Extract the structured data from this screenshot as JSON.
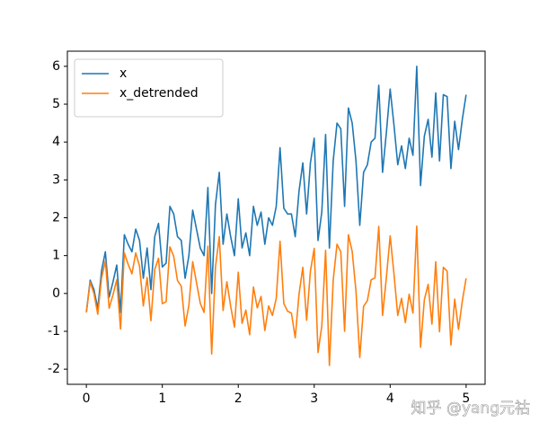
{
  "chart_data": {
    "type": "line",
    "x": [
      0,
      0.05,
      0.1,
      0.15,
      0.2,
      0.25,
      0.3,
      0.35,
      0.4,
      0.45,
      0.5,
      0.55,
      0.6,
      0.65,
      0.7,
      0.75,
      0.8,
      0.85,
      0.9,
      0.95,
      1.0,
      1.05,
      1.1,
      1.15,
      1.2,
      1.25,
      1.3,
      1.35,
      1.4,
      1.45,
      1.5,
      1.55,
      1.6,
      1.65,
      1.7,
      1.75,
      1.8,
      1.85,
      1.9,
      1.95,
      2.0,
      2.05,
      2.1,
      2.15,
      2.2,
      2.25,
      2.3,
      2.35,
      2.4,
      2.45,
      2.5,
      2.55,
      2.6,
      2.65,
      2.7,
      2.75,
      2.8,
      2.85,
      2.9,
      2.95,
      3.0,
      3.05,
      3.1,
      3.15,
      3.2,
      3.25,
      3.3,
      3.35,
      3.4,
      3.45,
      3.5,
      3.55,
      3.6,
      3.65,
      3.7,
      3.75,
      3.8,
      3.85,
      3.9,
      3.95,
      4.0,
      4.05,
      4.1,
      4.15,
      4.2,
      4.25,
      4.3,
      4.35,
      4.4,
      4.45,
      4.5,
      4.55,
      4.6,
      4.65,
      4.7,
      4.75,
      4.8,
      4.85,
      4.9,
      4.95,
      5.0
    ],
    "series": [
      {
        "name": "x",
        "color": "#1f77b4",
        "values": [
          -0.5,
          0.35,
          0.1,
          -0.4,
          0.6,
          1.1,
          -0.1,
          0.3,
          0.75,
          -0.5,
          1.55,
          1.3,
          1.1,
          1.7,
          1.4,
          0.4,
          1.2,
          0.1,
          1.5,
          1.85,
          0.7,
          0.8,
          2.3,
          2.1,
          1.5,
          1.4,
          0.4,
          1.0,
          2.2,
          1.7,
          1.2,
          1.0,
          2.8,
          0.0,
          2.35,
          3.2,
          1.3,
          2.1,
          1.5,
          1.0,
          2.5,
          1.2,
          1.6,
          1.0,
          2.3,
          1.8,
          2.15,
          1.3,
          2.0,
          1.8,
          2.3,
          3.85,
          2.25,
          2.1,
          2.1,
          1.5,
          2.7,
          3.45,
          2.1,
          3.45,
          4.1,
          1.4,
          2.15,
          4.2,
          1.2,
          3.5,
          4.5,
          4.35,
          2.3,
          4.9,
          4.5,
          3.5,
          1.8,
          3.2,
          3.4,
          4.0,
          4.1,
          5.5,
          3.2,
          4.25,
          5.4,
          4.45,
          3.4,
          3.9,
          3.3,
          4.1,
          3.65,
          6.0,
          2.85,
          4.15,
          4.6,
          3.6,
          5.3,
          3.5,
          5.25,
          5.2,
          3.3,
          4.55,
          3.8,
          4.6,
          5.25
        ]
      },
      {
        "name": "x_detrended",
        "color": "#ff7f0e",
        "values": [
          -0.5,
          0.3,
          0.0,
          -0.55,
          0.41,
          0.86,
          -0.39,
          -0.04,
          0.36,
          -0.94,
          1.07,
          0.77,
          0.52,
          1.07,
          0.72,
          -0.33,
          0.42,
          -0.72,
          0.63,
          0.93,
          -0.27,
          -0.22,
          1.23,
          0.98,
          0.34,
          0.19,
          -0.86,
          -0.31,
          0.84,
          0.29,
          -0.26,
          -0.5,
          1.25,
          -1.6,
          0.7,
          1.5,
          -0.45,
          0.31,
          -0.34,
          -0.89,
          0.56,
          -0.79,
          -0.44,
          -1.09,
          0.17,
          -0.38,
          -0.08,
          -0.98,
          -0.33,
          -0.58,
          -0.13,
          1.38,
          -0.27,
          -0.47,
          -0.52,
          -1.17,
          -0.02,
          0.69,
          -0.71,
          0.59,
          1.19,
          -1.56,
          -0.86,
          1.14,
          -1.9,
          0.35,
          1.3,
          1.1,
          -1.0,
          1.55,
          1.11,
          0.06,
          -1.69,
          -0.34,
          -0.19,
          0.36,
          0.41,
          1.77,
          -0.58,
          0.42,
          1.52,
          0.52,
          -0.58,
          -0.13,
          -0.77,
          -0.02,
          -0.52,
          1.78,
          -1.42,
          -0.17,
          0.24,
          -0.81,
          0.84,
          -1.01,
          0.69,
          0.59,
          -1.36,
          -0.15,
          -0.95,
          -0.2,
          0.4
        ]
      }
    ],
    "xlim": [
      -0.25,
      5.25
    ],
    "ylim": [
      -2.4,
      6.4
    ],
    "xticks": [
      0,
      1,
      2,
      3,
      4,
      5
    ],
    "yticks": [
      -2,
      -1,
      0,
      1,
      2,
      3,
      4,
      5,
      6
    ],
    "legend": "upper left"
  },
  "watermark": "知乎 @yang元祜"
}
